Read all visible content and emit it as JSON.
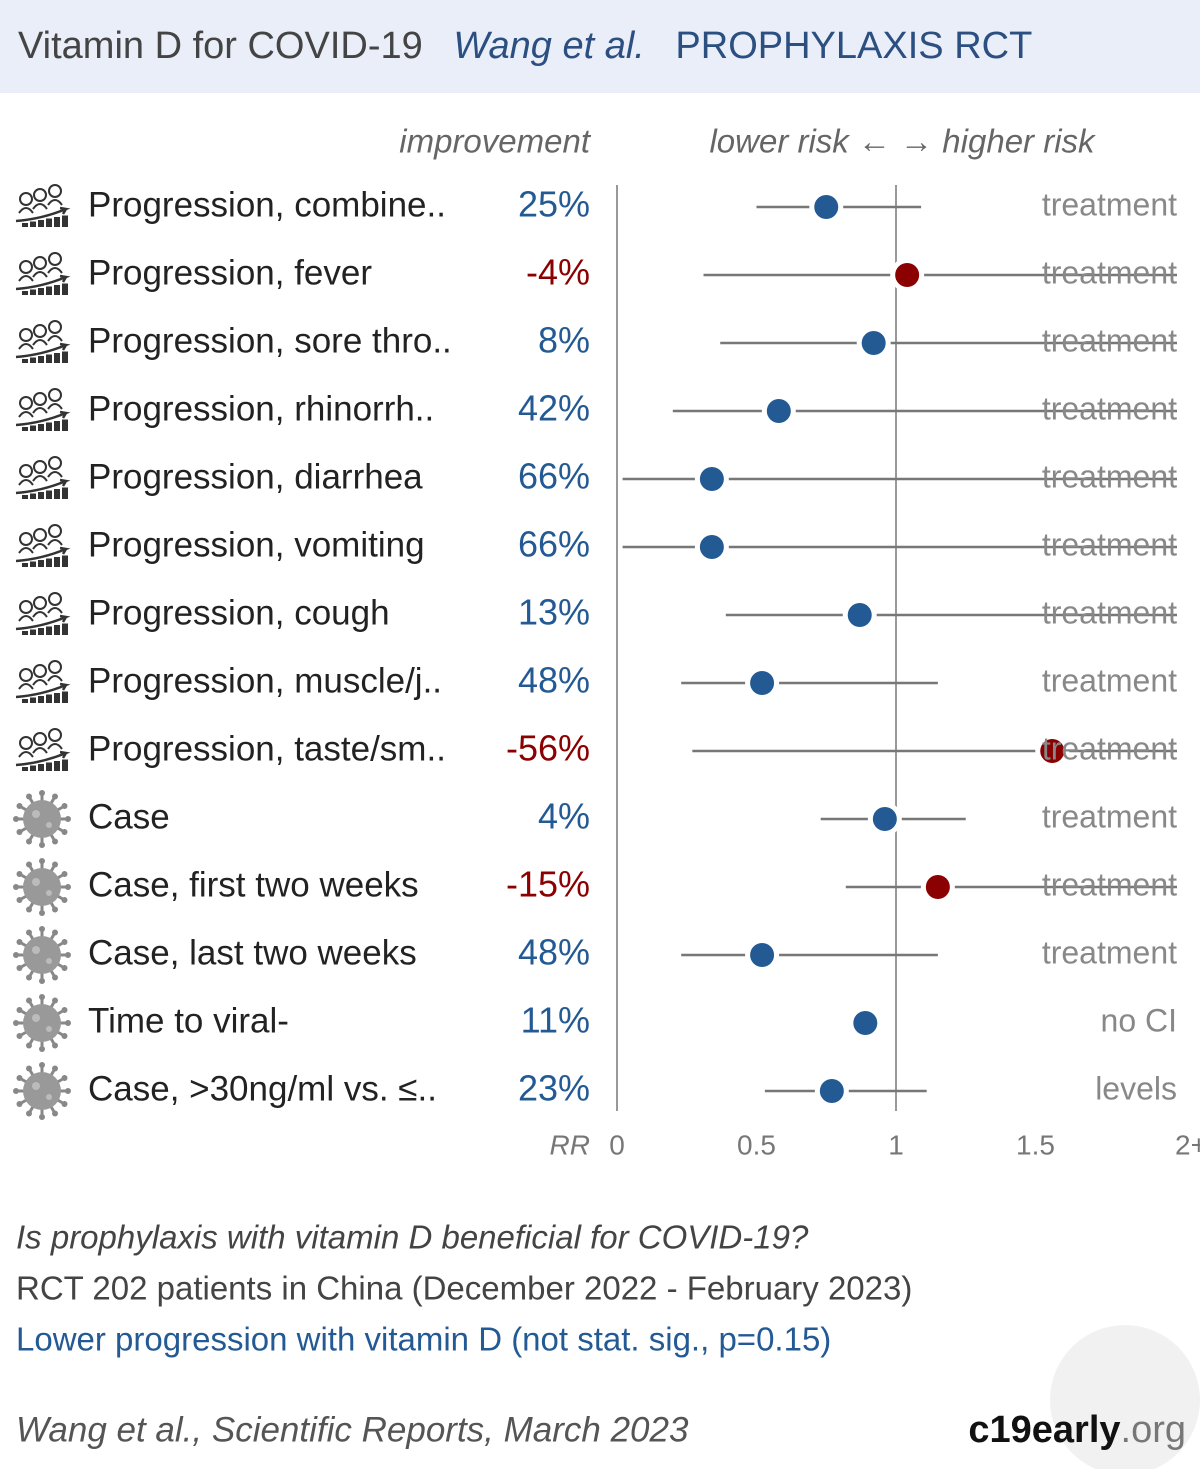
{
  "chart_data": {
    "type": "forest",
    "title": "Vitamin D for COVID-19",
    "study": "Wang et al.",
    "tag": "PROPHYLAXIS RCT",
    "column_improvement": "improvement",
    "column_direction": "lower risk ← → higher risk",
    "axis_label": "RR",
    "xlim": [
      0,
      2
    ],
    "xticks": [
      0,
      0.5,
      1,
      1.5,
      {
        "value": 2,
        "label": "2+"
      }
    ],
    "colors": {
      "lower": "#245a94",
      "higher": "#8b0000"
    },
    "rows": [
      {
        "icon": "progression",
        "label": "Progression, combine..",
        "improvement": "25%",
        "rr": 0.75,
        "ci": [
          0.5,
          1.09
        ],
        "note": "treatment"
      },
      {
        "icon": "progression",
        "label": "Progression, fever",
        "improvement": "-4%",
        "rr": 1.04,
        "ci": [
          0.31,
          2.5
        ],
        "note": "treatment"
      },
      {
        "icon": "progression",
        "label": "Progression, sore thro..",
        "improvement": "8%",
        "rr": 0.92,
        "ci": [
          0.37,
          2.5
        ],
        "note": "treatment"
      },
      {
        "icon": "progression",
        "label": "Progression, rhinorrh..",
        "improvement": "42%",
        "rr": 0.58,
        "ci": [
          0.2,
          2.5
        ],
        "note": "treatment"
      },
      {
        "icon": "progression",
        "label": "Progression, diarrhea",
        "improvement": "66%",
        "rr": 0.34,
        "ci": [
          0.02,
          2.5
        ],
        "note": "treatment"
      },
      {
        "icon": "progression",
        "label": "Progression, vomiting",
        "improvement": "66%",
        "rr": 0.34,
        "ci": [
          0.02,
          2.5
        ],
        "note": "treatment"
      },
      {
        "icon": "progression",
        "label": "Progression, cough",
        "improvement": "13%",
        "rr": 0.87,
        "ci": [
          0.39,
          2.5
        ],
        "note": "treatment"
      },
      {
        "icon": "progression",
        "label": "Progression, muscle/j..",
        "improvement": "48%",
        "rr": 0.52,
        "ci": [
          0.23,
          1.15
        ],
        "note": "treatment"
      },
      {
        "icon": "progression",
        "label": "Progression, taste/sm..",
        "improvement": "-56%",
        "rr": 1.56,
        "ci": [
          0.27,
          2.5
        ],
        "note": "treatment"
      },
      {
        "icon": "case",
        "label": "Case",
        "improvement": "4%",
        "rr": 0.96,
        "ci": [
          0.73,
          1.25
        ],
        "note": "treatment"
      },
      {
        "icon": "case",
        "label": "Case, first two weeks",
        "improvement": "-15%",
        "rr": 1.15,
        "ci": [
          0.82,
          2.5
        ],
        "note": "treatment"
      },
      {
        "icon": "case",
        "label": "Case, last two weeks",
        "improvement": "48%",
        "rr": 0.52,
        "ci": [
          0.23,
          1.15
        ],
        "note": "treatment"
      },
      {
        "icon": "case",
        "label": "Time to viral-",
        "improvement": "11%",
        "rr": 0.89,
        "ci": null,
        "note": "no CI"
      },
      {
        "icon": "case",
        "label": "Case, >30ng/ml vs. ≤..",
        "improvement": "23%",
        "rr": 0.77,
        "ci": [
          0.53,
          1.11
        ],
        "note": "levels"
      }
    ],
    "question": "Is prophylaxis with vitamin D beneficial for COVID-19?",
    "design": "RCT 202 patients in China (December 2022 - February 2023)",
    "conclusion": "Lower progression with vitamin D (not stat. sig., p=0.15)",
    "citation": "Wang et al., Scientific Reports, March 2023",
    "site": "c19early",
    "site_suffix": ".org"
  }
}
